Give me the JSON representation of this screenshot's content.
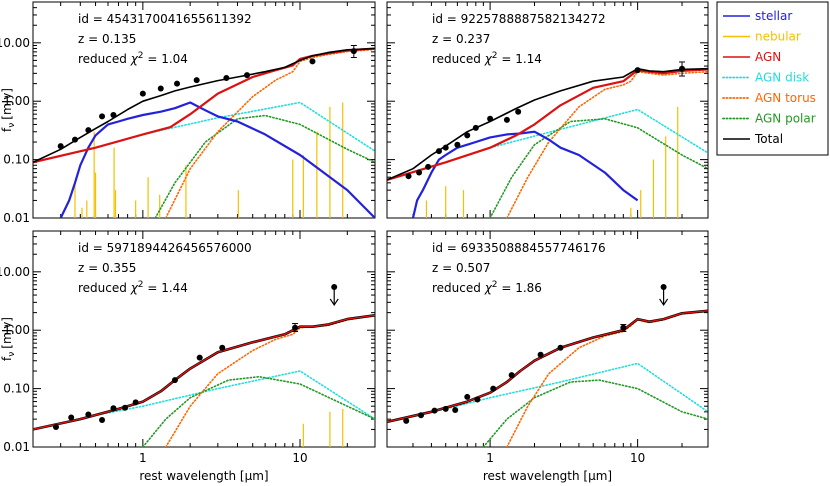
{
  "axes": {
    "xlabel": "rest wavelength [μm]",
    "ylabel": "f",
    "ylabel_sub": "ν",
    "ylabel_unit": "[mJy]",
    "xscale": "log",
    "yscale": "log",
    "xlim": [
      0.2,
      30
    ],
    "ylim": [
      0.01,
      50
    ],
    "xticklabels": [
      {
        "v": 1,
        "t": "1"
      },
      {
        "v": 10,
        "t": "10"
      }
    ],
    "yticklabels": [
      {
        "v": 0.01,
        "t": "0.01"
      },
      {
        "v": 0.1,
        "t": "0.10"
      },
      {
        "v": 1,
        "t": "1.00"
      },
      {
        "v": 10,
        "t": "10.00"
      }
    ]
  },
  "legend": {
    "position": "right",
    "entries": [
      {
        "name": "stellar",
        "color": "#2222dd",
        "style": "solid"
      },
      {
        "name": "nebular",
        "color": "#f5c000",
        "style": "solid"
      },
      {
        "name": "AGN",
        "color": "#dd1111",
        "style": "solid"
      },
      {
        "name": "AGN disk",
        "color": "#22dddd",
        "style": "dotted"
      },
      {
        "name": "AGN torus",
        "color": "#ff6600",
        "style": "dotted"
      },
      {
        "name": "AGN polar",
        "color": "#229922",
        "style": "dotted"
      },
      {
        "name": "Total",
        "color": "#000000",
        "style": "solid"
      }
    ]
  },
  "chart_data": [
    {
      "type": "line",
      "id_label": "id = 4543170041655611392",
      "z_label": "z = 0.135",
      "chi_prefix": "reduced ",
      "chi_symbol": "χ",
      "chi_exp": "2",
      "chi_value": " = 1.04",
      "has_stellar": true,
      "stellar_peak": 1.0,
      "total_dominant": "black",
      "disk": {
        "x": [
          0.2,
          0.5,
          1,
          3,
          10,
          30
        ],
        "y": [
          0.09,
          0.16,
          0.27,
          0.52,
          0.95,
          0.14
        ]
      },
      "torus": {
        "x": [
          1.4,
          2,
          3,
          5,
          7,
          9,
          10,
          12,
          15,
          20,
          30
        ],
        "y": [
          0.01,
          0.07,
          0.3,
          1.2,
          2.3,
          3.2,
          4.8,
          5.6,
          6.3,
          7.1,
          7.7
        ]
      },
      "polar": {
        "x": [
          1.2,
          1.6,
          2.5,
          4,
          6,
          10,
          20,
          30
        ],
        "y": [
          0.01,
          0.04,
          0.2,
          0.5,
          0.57,
          0.4,
          0.15,
          0.09
        ]
      },
      "agn": {
        "x": [
          0.2,
          0.5,
          1,
          1.5,
          2,
          3,
          5,
          7,
          9,
          10,
          12,
          15,
          20,
          30
        ],
        "y": [
          0.09,
          0.16,
          0.27,
          0.36,
          0.6,
          1.35,
          2.6,
          3.4,
          4.1,
          5.3,
          6.0,
          6.6,
          7.4,
          8.0
        ]
      },
      "stellar": {
        "x": [
          0.3,
          0.34,
          0.37,
          0.4,
          0.45,
          0.5,
          0.6,
          0.7,
          0.8,
          1,
          1.3,
          1.6,
          2,
          2.5,
          3,
          4,
          6,
          10,
          20,
          30
        ],
        "y": [
          0.01,
          0.02,
          0.04,
          0.08,
          0.16,
          0.26,
          0.4,
          0.45,
          0.5,
          0.58,
          0.66,
          0.76,
          0.95,
          0.7,
          0.55,
          0.45,
          0.27,
          0.12,
          0.03,
          0.01
        ]
      },
      "total": {
        "x": [
          0.2,
          0.3,
          0.4,
          0.5,
          0.6,
          0.8,
          1,
          1.3,
          1.6,
          2,
          3,
          4,
          6,
          8,
          10,
          12,
          15,
          20,
          30
        ],
        "y": [
          0.09,
          0.15,
          0.24,
          0.34,
          0.45,
          0.72,
          1.0,
          1.25,
          1.5,
          1.75,
          2.25,
          2.6,
          3.2,
          3.8,
          5.0,
          6.0,
          6.8,
          7.6,
          8.0
        ]
      },
      "nebular": [
        {
          "x": 0.37,
          "y": 0.04
        },
        {
          "x": 0.41,
          "y": 0.015
        },
        {
          "x": 0.44,
          "y": 0.02
        },
        {
          "x": 0.49,
          "y": 0.3
        },
        {
          "x": 0.5,
          "y": 0.06
        },
        {
          "x": 0.656,
          "y": 0.16
        },
        {
          "x": 0.67,
          "y": 0.03
        },
        {
          "x": 0.9,
          "y": 0.02
        },
        {
          "x": 1.08,
          "y": 0.05
        },
        {
          "x": 1.28,
          "y": 0.025
        },
        {
          "x": 1.88,
          "y": 0.08
        },
        {
          "x": 4.05,
          "y": 0.03
        },
        {
          "x": 8.99,
          "y": 0.1
        },
        {
          "x": 10.5,
          "y": 0.12
        },
        {
          "x": 12.8,
          "y": 0.3
        },
        {
          "x": 15.5,
          "y": 0.8
        },
        {
          "x": 18.7,
          "y": 0.95
        }
      ],
      "points": [
        {
          "x": 0.3,
          "y": 0.17
        },
        {
          "x": 0.37,
          "y": 0.22
        },
        {
          "x": 0.45,
          "y": 0.32
        },
        {
          "x": 0.55,
          "y": 0.55
        },
        {
          "x": 0.65,
          "y": 0.58
        },
        {
          "x": 1.0,
          "y": 1.35
        },
        {
          "x": 1.3,
          "y": 1.65
        },
        {
          "x": 1.65,
          "y": 2.0
        },
        {
          "x": 2.2,
          "y": 2.3
        },
        {
          "x": 3.4,
          "y": 2.5
        },
        {
          "x": 4.6,
          "y": 2.8
        },
        {
          "x": 12,
          "y": 4.8
        },
        {
          "x": 22,
          "y": 7.2,
          "err": [
            5.6,
            9.0
          ]
        }
      ],
      "upper_limit": null
    },
    {
      "type": "line",
      "id_label": "id = 9225788887582134272",
      "z_label": "z = 0.237",
      "chi_prefix": "reduced ",
      "chi_symbol": "χ",
      "chi_exp": "2",
      "chi_value": " = 1.14",
      "has_stellar": true,
      "total_dominant": "black",
      "disk": {
        "x": [
          0.2,
          0.5,
          1,
          3,
          10,
          30
        ],
        "y": [
          0.045,
          0.09,
          0.16,
          0.33,
          0.72,
          0.13
        ]
      },
      "torus": {
        "x": [
          1.3,
          1.8,
          2.5,
          4,
          6,
          8,
          9,
          10,
          12,
          15,
          20,
          30
        ],
        "y": [
          0.01,
          0.05,
          0.2,
          0.8,
          1.6,
          1.9,
          2.2,
          3.2,
          3.0,
          2.8,
          3.0,
          3.2
        ]
      },
      "polar": {
        "x": [
          1.0,
          1.4,
          2,
          3.5,
          6,
          10,
          20,
          30
        ],
        "y": [
          0.01,
          0.05,
          0.18,
          0.45,
          0.5,
          0.35,
          0.12,
          0.07
        ]
      },
      "agn": {
        "x": [
          0.2,
          0.5,
          1,
          1.5,
          2,
          3,
          5,
          8,
          10,
          12,
          15,
          20,
          30
        ],
        "y": [
          0.045,
          0.09,
          0.16,
          0.26,
          0.4,
          0.85,
          1.7,
          2.2,
          3.4,
          3.2,
          3.0,
          3.3,
          3.5
        ]
      },
      "stellar": {
        "x": [
          0.3,
          0.32,
          0.35,
          0.4,
          0.45,
          0.5,
          0.6,
          0.7,
          0.8,
          1,
          1.3,
          1.6,
          2,
          2.5,
          3,
          4,
          6,
          8,
          10
        ],
        "y": [
          0.01,
          0.02,
          0.03,
          0.06,
          0.1,
          0.12,
          0.16,
          0.18,
          0.2,
          0.24,
          0.27,
          0.28,
          0.3,
          0.22,
          0.16,
          0.12,
          0.06,
          0.03,
          0.02
        ]
      },
      "total": {
        "x": [
          0.2,
          0.3,
          0.4,
          0.5,
          0.7,
          1,
          1.5,
          2,
          3,
          5,
          8,
          10,
          12,
          15,
          20,
          30
        ],
        "y": [
          0.045,
          0.07,
          0.12,
          0.17,
          0.3,
          0.45,
          0.75,
          1.05,
          1.5,
          2.2,
          2.6,
          3.6,
          3.3,
          3.2,
          3.5,
          3.6
        ]
      },
      "nebular": [
        {
          "x": 0.37,
          "y": 0.02
        },
        {
          "x": 0.5,
          "y": 0.035
        },
        {
          "x": 0.66,
          "y": 0.03
        },
        {
          "x": 9.0,
          "y": 0.015
        },
        {
          "x": 10.5,
          "y": 0.03
        },
        {
          "x": 12.8,
          "y": 0.1
        },
        {
          "x": 15.5,
          "y": 0.25
        },
        {
          "x": 18.7,
          "y": 0.8
        }
      ],
      "points": [
        {
          "x": 0.28,
          "y": 0.052
        },
        {
          "x": 0.33,
          "y": 0.06
        },
        {
          "x": 0.38,
          "y": 0.075
        },
        {
          "x": 0.45,
          "y": 0.14
        },
        {
          "x": 0.5,
          "y": 0.16
        },
        {
          "x": 0.6,
          "y": 0.18
        },
        {
          "x": 0.7,
          "y": 0.26
        },
        {
          "x": 0.8,
          "y": 0.35
        },
        {
          "x": 1.0,
          "y": 0.5
        },
        {
          "x": 1.3,
          "y": 0.48
        },
        {
          "x": 1.55,
          "y": 0.66
        },
        {
          "x": 10,
          "y": 3.4
        },
        {
          "x": 20,
          "y": 3.6,
          "err": [
            2.7,
            4.7
          ]
        }
      ],
      "upper_limit": null
    },
    {
      "type": "line",
      "id_label": "id = 5971894426456576000",
      "z_label": "z = 0.355",
      "chi_prefix": "reduced ",
      "chi_symbol": "χ",
      "chi_exp": "2",
      "chi_value": " = 1.44",
      "has_stellar": false,
      "total_dominant": "red",
      "disk": {
        "x": [
          0.2,
          0.5,
          1,
          3,
          10,
          30
        ],
        "y": [
          0.02,
          0.035,
          0.05,
          0.1,
          0.2,
          0.03
        ]
      },
      "torus": {
        "x": [
          1.4,
          2,
          3,
          5,
          7,
          9,
          10,
          12,
          15,
          20,
          30
        ],
        "y": [
          0.01,
          0.05,
          0.18,
          0.45,
          0.7,
          0.85,
          1.1,
          1.15,
          1.2,
          1.5,
          1.8
        ]
      },
      "polar": {
        "x": [
          1.0,
          1.4,
          2,
          3.5,
          5.5,
          10,
          20,
          30
        ],
        "y": [
          0.01,
          0.03,
          0.07,
          0.14,
          0.16,
          0.12,
          0.05,
          0.03
        ]
      },
      "agn": {
        "x": [
          0.2,
          0.4,
          0.7,
          1,
          1.3,
          1.6,
          2,
          3,
          5,
          8,
          10,
          12,
          15,
          20,
          30
        ],
        "y": [
          0.02,
          0.03,
          0.045,
          0.06,
          0.09,
          0.14,
          0.22,
          0.42,
          0.62,
          0.85,
          1.15,
          1.15,
          1.25,
          1.55,
          1.8
        ]
      },
      "stellar": null,
      "total": {
        "x": [
          0.2,
          0.4,
          0.7,
          1,
          1.3,
          1.6,
          2,
          3,
          5,
          8,
          10,
          12,
          15,
          20,
          30
        ],
        "y": [
          0.02,
          0.03,
          0.045,
          0.06,
          0.09,
          0.14,
          0.22,
          0.42,
          0.62,
          0.85,
          1.15,
          1.15,
          1.25,
          1.55,
          1.8
        ]
      },
      "nebular": [
        {
          "x": 10.5,
          "y": 0.025
        },
        {
          "x": 15.5,
          "y": 0.04
        },
        {
          "x": 18.7,
          "y": 0.045
        }
      ],
      "points": [
        {
          "x": 0.28,
          "y": 0.022
        },
        {
          "x": 0.35,
          "y": 0.032
        },
        {
          "x": 0.45,
          "y": 0.036
        },
        {
          "x": 0.55,
          "y": 0.029
        },
        {
          "x": 0.65,
          "y": 0.046
        },
        {
          "x": 0.77,
          "y": 0.047
        },
        {
          "x": 0.9,
          "y": 0.058
        },
        {
          "x": 1.6,
          "y": 0.14
        },
        {
          "x": 2.3,
          "y": 0.34
        },
        {
          "x": 3.2,
          "y": 0.5
        },
        {
          "x": 9.3,
          "y": 1.1,
          "err": [
            0.95,
            1.3
          ]
        }
      ],
      "upper_limit": {
        "x": 16.5,
        "y": 5.5
      }
    },
    {
      "type": "line",
      "id_label": "id = 6933508884557746176",
      "z_label": "z = 0.507",
      "chi_prefix": "reduced ",
      "chi_symbol": "χ",
      "chi_exp": "2",
      "chi_value": " = 1.86",
      "has_stellar": false,
      "total_dominant": "red",
      "disk": {
        "x": [
          0.2,
          0.5,
          1,
          3,
          10,
          30
        ],
        "y": [
          0.027,
          0.045,
          0.07,
          0.13,
          0.27,
          0.04
        ]
      },
      "torus": {
        "x": [
          1.3,
          1.8,
          2.5,
          4,
          6,
          8,
          9,
          10,
          12,
          15,
          20,
          30
        ],
        "y": [
          0.01,
          0.05,
          0.18,
          0.5,
          0.8,
          0.95,
          1.2,
          1.5,
          1.35,
          1.5,
          1.9,
          2.1
        ]
      },
      "polar": {
        "x": [
          0.9,
          1.3,
          2,
          3.5,
          5.5,
          10,
          20,
          30
        ],
        "y": [
          0.01,
          0.03,
          0.07,
          0.13,
          0.14,
          0.1,
          0.04,
          0.03
        ]
      },
      "agn": {
        "x": [
          0.2,
          0.4,
          0.7,
          1,
          1.3,
          1.6,
          2,
          3,
          5,
          8,
          10,
          12,
          15,
          20,
          30
        ],
        "y": [
          0.027,
          0.04,
          0.06,
          0.085,
          0.13,
          0.2,
          0.3,
          0.5,
          0.75,
          1.0,
          1.55,
          1.4,
          1.55,
          1.95,
          2.15
        ]
      },
      "stellar": null,
      "total": {
        "x": [
          0.2,
          0.4,
          0.7,
          1,
          1.3,
          1.6,
          2,
          3,
          5,
          8,
          10,
          12,
          15,
          20,
          30
        ],
        "y": [
          0.027,
          0.04,
          0.06,
          0.085,
          0.13,
          0.2,
          0.3,
          0.5,
          0.75,
          1.0,
          1.55,
          1.4,
          1.55,
          1.95,
          2.15
        ]
      },
      "nebular": [],
      "points": [
        {
          "x": 0.27,
          "y": 0.028
        },
        {
          "x": 0.34,
          "y": 0.035
        },
        {
          "x": 0.42,
          "y": 0.042
        },
        {
          "x": 0.5,
          "y": 0.045
        },
        {
          "x": 0.58,
          "y": 0.043
        },
        {
          "x": 0.7,
          "y": 0.072
        },
        {
          "x": 0.82,
          "y": 0.065
        },
        {
          "x": 1.05,
          "y": 0.1
        },
        {
          "x": 1.4,
          "y": 0.17
        },
        {
          "x": 2.2,
          "y": 0.38
        },
        {
          "x": 3.0,
          "y": 0.5
        },
        {
          "x": 8.0,
          "y": 1.1,
          "err": [
            0.95,
            1.25
          ]
        }
      ],
      "upper_limit": {
        "x": 15,
        "y": 5.5
      }
    }
  ]
}
